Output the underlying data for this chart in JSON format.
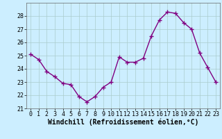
{
  "x": [
    0,
    1,
    2,
    3,
    4,
    5,
    6,
    7,
    8,
    9,
    10,
    11,
    12,
    13,
    14,
    15,
    16,
    17,
    18,
    19,
    20,
    21,
    22,
    23
  ],
  "y": [
    25.1,
    24.7,
    23.8,
    23.4,
    22.9,
    22.8,
    21.9,
    21.5,
    21.9,
    22.6,
    23.0,
    24.9,
    24.5,
    24.5,
    24.8,
    26.5,
    27.7,
    28.3,
    28.2,
    27.5,
    27.0,
    25.2,
    24.1,
    23.0
  ],
  "line_color": "#800080",
  "marker": "+",
  "marker_size": 4,
  "line_width": 1.0,
  "bg_color": "#cceeff",
  "grid_color": "#aacccc",
  "xlabel": "Windchill (Refroidissement éolien,°C)",
  "xlabel_fontsize": 7,
  "tick_fontsize": 6,
  "ylim": [
    21,
    29
  ],
  "xlim": [
    -0.5,
    23.5
  ],
  "yticks": [
    21,
    22,
    23,
    24,
    25,
    26,
    27,
    28
  ],
  "xticks": [
    0,
    1,
    2,
    3,
    4,
    5,
    6,
    7,
    8,
    9,
    10,
    11,
    12,
    13,
    14,
    15,
    16,
    17,
    18,
    19,
    20,
    21,
    22,
    23
  ]
}
